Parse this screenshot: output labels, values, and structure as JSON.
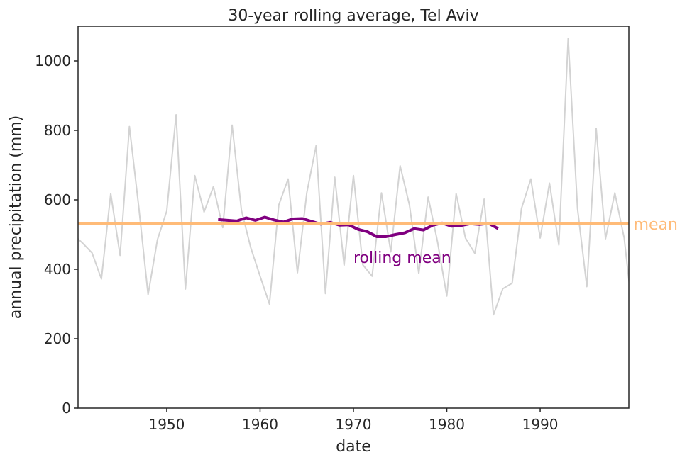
{
  "chart_data": {
    "type": "line",
    "title": "30-year rolling average, Tel Aviv",
    "xlabel": "date",
    "ylabel": "annual precipitation (mm)",
    "xlim": [
      1940.5,
      1999.5
    ],
    "ylim": [
      0,
      1100
    ],
    "xticks": [
      1950,
      1960,
      1970,
      1980,
      1990
    ],
    "yticks": [
      0,
      200,
      400,
      600,
      800,
      1000
    ],
    "grid": false,
    "series": [
      {
        "color": "#d3d3d3",
        "x": [
          1940,
          1941,
          1942,
          1943,
          1944,
          1945,
          1946,
          1947,
          1948,
          1949,
          1950,
          1951,
          1952,
          1953,
          1954,
          1955,
          1956,
          1957,
          1958,
          1959,
          1960,
          1961,
          1962,
          1963,
          1964,
          1965,
          1966,
          1967,
          1968,
          1969,
          1970,
          1971,
          1972,
          1973,
          1974,
          1975,
          1976,
          1977,
          1978,
          1979,
          1980,
          1981,
          1982,
          1983,
          1984,
          1985,
          1986,
          1987,
          1988,
          1989,
          1990,
          1991,
          1992,
          1993,
          1994,
          1995,
          1996,
          1997,
          1998,
          1999,
          2000
        ],
        "y": [
          500,
          475,
          447,
          372,
          618,
          440,
          811,
          580,
          327,
          485,
          568,
          845,
          343,
          670,
          565,
          638,
          520,
          815,
          570,
          462,
          380,
          300,
          585,
          660,
          390,
          620,
          756,
          330,
          665,
          412,
          670,
          413,
          380,
          620,
          450,
          698,
          585,
          388,
          608,
          480,
          323,
          618,
          490,
          446,
          602,
          269,
          344,
          360,
          575,
          660,
          490,
          648,
          470,
          1065,
          575,
          350,
          806,
          488,
          620,
          490,
          250
        ]
      },
      {
        "name": "rolling mean",
        "color": "#800080",
        "x": [
          1955.5,
          1956.5,
          1957.5,
          1958.5,
          1959.5,
          1960.5,
          1961.5,
          1962.5,
          1963.5,
          1964.5,
          1965.5,
          1966.5,
          1967.5,
          1968.5,
          1969.5,
          1970.5,
          1971.5,
          1972.5,
          1973.5,
          1974.5,
          1975.5,
          1976.5,
          1977.5,
          1978.5,
          1979.5,
          1980.5,
          1981.5,
          1982.5,
          1983.5,
          1984.5,
          1985.5
        ],
        "y": [
          543,
          541,
          539,
          548,
          541,
          550,
          542,
          536,
          545,
          546,
          538,
          530,
          535,
          527,
          528,
          515,
          508,
          494,
          494,
          500,
          505,
          517,
          513,
          527,
          533,
          524,
          526,
          531,
          529,
          532,
          517
        ]
      }
    ],
    "hlines": [
      {
        "name": "mean",
        "y": 531,
        "color": "#ffbb78"
      }
    ],
    "annotations": [
      {
        "text": "rolling mean",
        "x": 1970,
        "y": 435,
        "color": "#800080"
      },
      {
        "text": "mean",
        "x": 2000,
        "y": 531,
        "color": "#ffbb78"
      }
    ]
  }
}
